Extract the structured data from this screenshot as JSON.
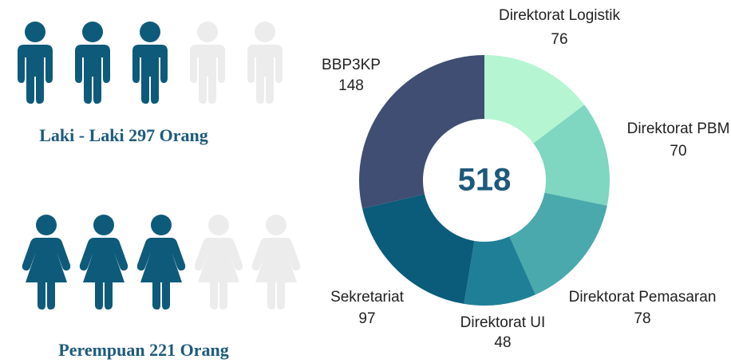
{
  "chart_data": [
    {
      "type": "pictograph",
      "icon": "male",
      "caption": "Laki - Laki 297 Orang",
      "filled": 3,
      "total": 5,
      "color": "#0e5a7a",
      "empty_color": "#ececec"
    },
    {
      "type": "pictograph",
      "icon": "female",
      "caption": "Perempuan 221 Orang",
      "filled": 3,
      "total": 5,
      "color": "#0e5a7a",
      "empty_color": "#ececec"
    },
    {
      "type": "donut",
      "total": 518,
      "categories": [
        "Direktorat Logistik",
        "Direktorat PBM",
        "Direktorat Pemasaran",
        "Direktorat UI",
        "Sekretariat",
        "BBP3KP"
      ],
      "values": [
        76,
        70,
        78,
        48,
        97,
        148
      ],
      "colors": [
        "#b5f5d2",
        "#7fd6c1",
        "#4aa9ac",
        "#1f7f96",
        "#0b5b7b",
        "#3f4e72"
      ]
    }
  ]
}
